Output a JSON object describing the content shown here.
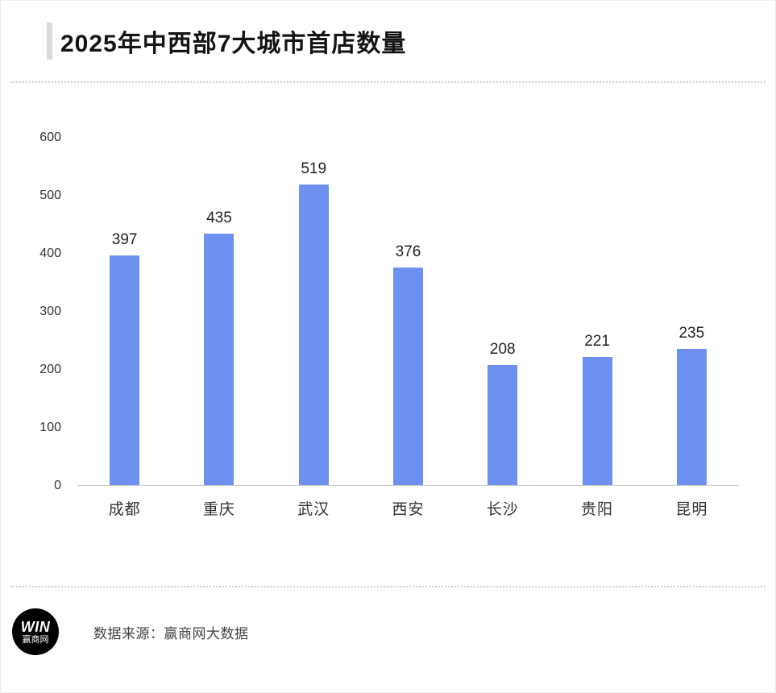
{
  "header": {
    "title": "2025年中西部7大城市首店数量"
  },
  "chart_data": {
    "type": "bar",
    "title": "2025年中西部7大城市首店数量",
    "categories": [
      "成都",
      "重庆",
      "武汉",
      "西安",
      "长沙",
      "贵阳",
      "昆明"
    ],
    "values": [
      397,
      435,
      519,
      376,
      208,
      221,
      235
    ],
    "xlabel": "",
    "ylabel": "",
    "ylim": [
      0,
      600
    ],
    "yticks": [
      0,
      100,
      200,
      300,
      400,
      500,
      600
    ],
    "grid": false,
    "legend": false,
    "bar_color": "#6d90f1",
    "value_labels": true
  },
  "footer": {
    "source_text": "数据来源：赢商网大数据",
    "logo": {
      "line1": "WIN",
      "line2": "赢商网"
    }
  }
}
